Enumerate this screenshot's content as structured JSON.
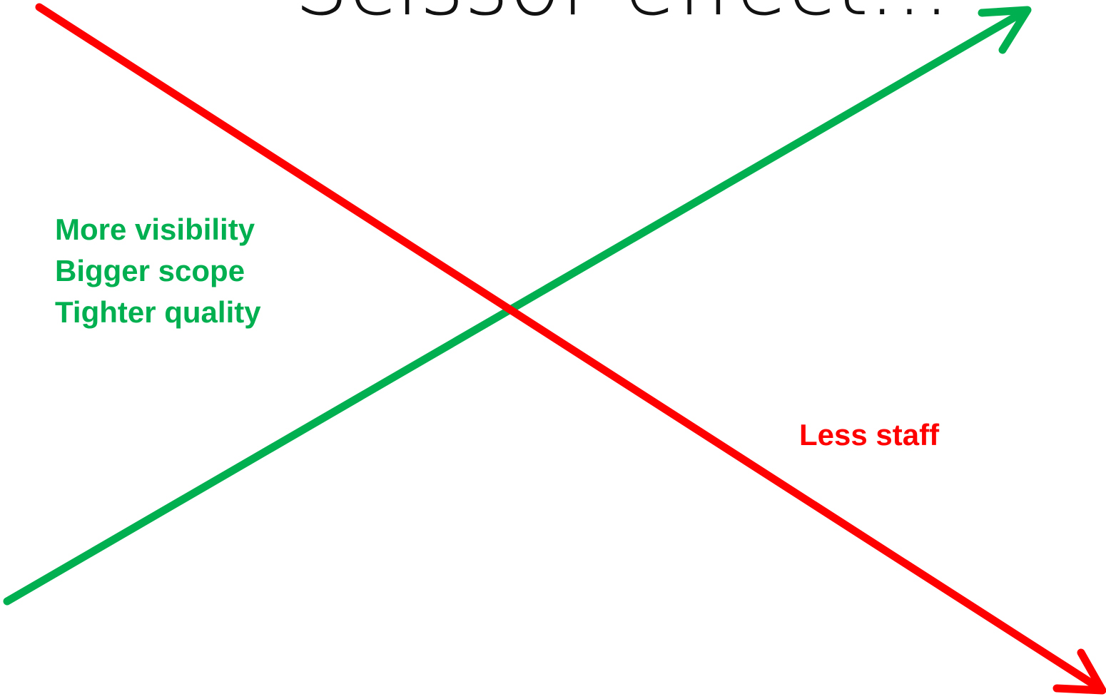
{
  "title": "Scissor effect...",
  "green_labels": [
    "More visibility",
    "Bigger scope",
    "Tighter quality"
  ],
  "red_label": "Less staff"
}
